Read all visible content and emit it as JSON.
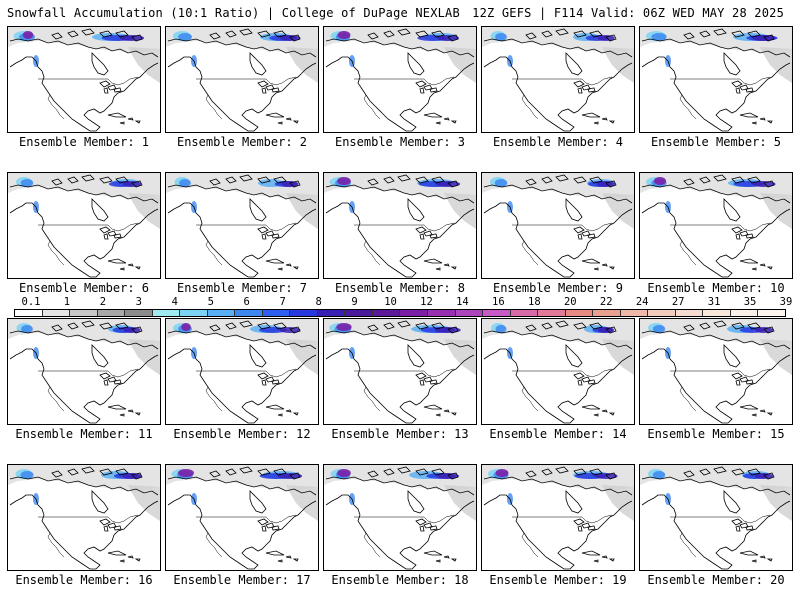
{
  "header": {
    "left": "Snowfall Accumulation (10:1 Ratio) | College of DuPage NEXLAB",
    "right": "12Z GEFS | F114 Valid: 06Z WED MAY 28 2025"
  },
  "colorbar": {
    "labels": [
      "0.1",
      "1",
      "2",
      "3",
      "4",
      "5",
      "6",
      "7",
      "8",
      "9",
      "10",
      "12",
      "14",
      "16",
      "18",
      "20",
      "22",
      "24",
      "27",
      "31",
      "35",
      "39"
    ],
    "colors": [
      "#ffffff",
      "#e6e6e6",
      "#c8c8c8",
      "#a8a8a8",
      "#8c8c8c",
      "#9feaf0",
      "#7dd3f5",
      "#5ab0f5",
      "#3d88f0",
      "#2f5ff2",
      "#2838e0",
      "#3a1fb5",
      "#4a1a9c",
      "#5c1a9a",
      "#7a1fa6",
      "#9630b0",
      "#ac44ba",
      "#c85ac6",
      "#d86aa8",
      "#e07a98",
      "#e68a82",
      "#eaa090",
      "#efb8a8",
      "#f2ccbc",
      "#f6dcd0",
      "#f8e8dc",
      "#fbf0e8",
      "#fdf6f0"
    ]
  },
  "panels": [
    {
      "label": "Ensemble Member: 1",
      "intensity": 0.85,
      "purple": 0.4
    },
    {
      "label": "Ensemble Member: 2",
      "intensity": 0.7,
      "purple": 0.3
    },
    {
      "label": "Ensemble Member: 3",
      "intensity": 0.75,
      "purple": 0.55
    },
    {
      "label": "Ensemble Member: 4",
      "intensity": 0.55,
      "purple": 0.2
    },
    {
      "label": "Ensemble Member: 5",
      "intensity": 0.8,
      "purple": 0.3
    },
    {
      "label": "Ensemble Member: 6",
      "intensity": 0.6,
      "purple": 0.2
    },
    {
      "label": "Ensemble Member: 7",
      "intensity": 0.55,
      "purple": 0.15
    },
    {
      "label": "Ensemble Member: 8",
      "intensity": 0.85,
      "purple": 0.6
    },
    {
      "label": "Ensemble Member: 9",
      "intensity": 0.6,
      "purple": 0.3
    },
    {
      "label": "Ensemble Member: 10",
      "intensity": 0.8,
      "purple": 0.5
    },
    {
      "label": "Ensemble Member: 11",
      "intensity": 0.55,
      "purple": 0.2
    },
    {
      "label": "Ensemble Member: 12",
      "intensity": 0.7,
      "purple": 0.35
    },
    {
      "label": "Ensemble Member: 13",
      "intensity": 0.9,
      "purple": 0.7
    },
    {
      "label": "Ensemble Member: 14",
      "intensity": 0.5,
      "purple": 0.1
    },
    {
      "label": "Ensemble Member: 15",
      "intensity": 0.6,
      "purple": 0.2
    },
    {
      "label": "Ensemble Member: 16",
      "intensity": 0.65,
      "purple": 0.25
    },
    {
      "label": "Ensemble Member: 17",
      "intensity": 0.85,
      "purple": 0.75
    },
    {
      "label": "Ensemble Member: 18",
      "intensity": 0.75,
      "purple": 0.6
    },
    {
      "label": "Ensemble Member: 19",
      "intensity": 0.8,
      "purple": 0.55
    },
    {
      "label": "Ensemble Member: 20",
      "intensity": 0.6,
      "purple": 0.3
    }
  ]
}
